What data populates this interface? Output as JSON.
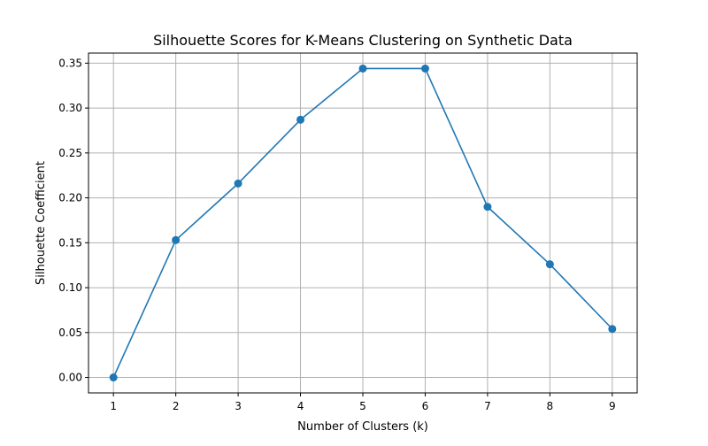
{
  "chart_data": {
    "type": "line",
    "title": "Silhouette Scores for K-Means Clustering on Synthetic Data",
    "xlabel": "Number of Clusters (k)",
    "ylabel": "Silhouette Coefficient",
    "x": [
      1,
      2,
      3,
      4,
      5,
      6,
      7,
      8,
      9
    ],
    "series": [
      {
        "values": [
          0.0,
          0.153,
          0.216,
          0.287,
          0.344,
          0.344,
          0.19,
          0.126,
          0.054
        ],
        "color": "#1f77b4",
        "marker": "circle"
      }
    ],
    "xlim": [
      0.6,
      9.4
    ],
    "ylim": [
      -0.0172,
      0.3612
    ],
    "xticks": [
      1,
      2,
      3,
      4,
      5,
      6,
      7,
      8,
      9
    ],
    "xtick_labels": [
      "1",
      "2",
      "3",
      "4",
      "5",
      "6",
      "7",
      "8",
      "9"
    ],
    "yticks": [
      0.0,
      0.05,
      0.1,
      0.15,
      0.2,
      0.25,
      0.3,
      0.35
    ],
    "ytick_labels": [
      "0.00",
      "0.05",
      "0.10",
      "0.15",
      "0.20",
      "0.25",
      "0.30",
      "0.35"
    ],
    "grid": true,
    "grid_color": "#b0b0b0",
    "legend": "none"
  }
}
